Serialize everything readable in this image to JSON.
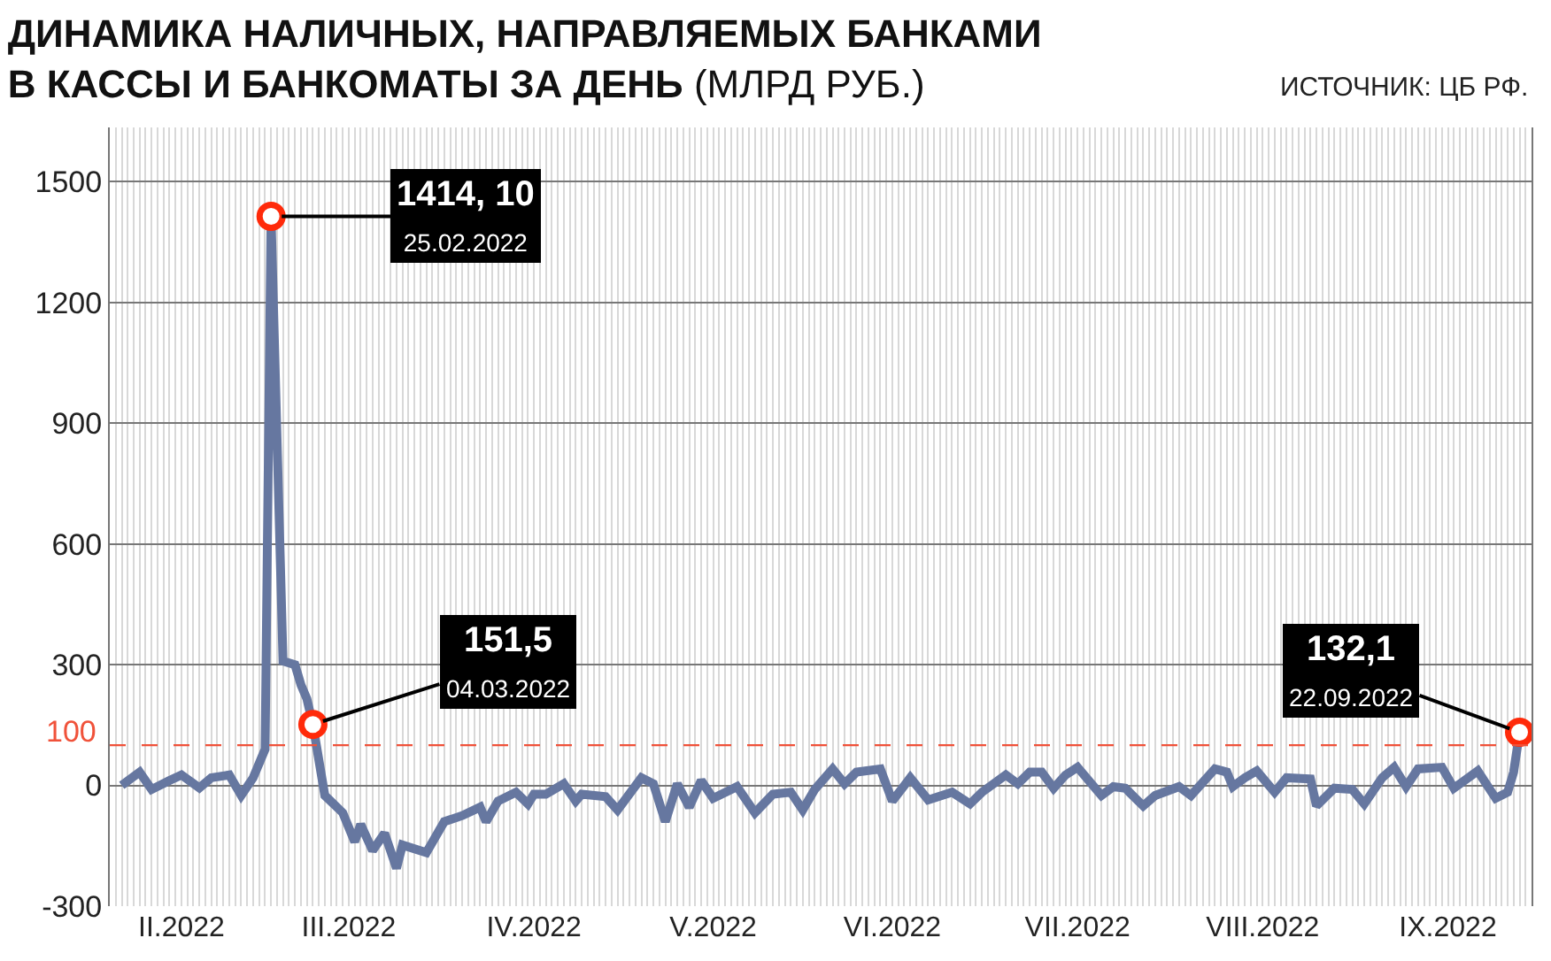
{
  "chart_data": {
    "type": "line",
    "title": "ДИНАМИКА НАЛИЧНЫХ, НАПРАВЛЯЕМЫХ БАНКАМИ\nВ КАССЫ И БАНКОМАТЫ ЗА ДЕНЬ",
    "subtitle": "(МЛРД РУБ.)",
    "x": [
      "2022-01-31",
      "2022-02-03",
      "2022-02-05",
      "2022-02-08",
      "2022-02-10",
      "2022-02-13",
      "2022-02-15",
      "2022-02-18",
      "2022-02-20",
      "2022-02-22",
      "2022-02-24",
      "2022-02-25",
      "2022-02-27",
      "2022-03-01",
      "2022-03-02",
      "2022-03-03",
      "2022-03-04",
      "2022-03-06",
      "2022-03-09",
      "2022-03-11",
      "2022-03-12",
      "2022-03-14",
      "2022-03-16",
      "2022-03-18",
      "2022-03-19",
      "2022-03-23",
      "2022-03-26",
      "2022-03-29",
      "2022-04-01",
      "2022-04-02",
      "2022-04-04",
      "2022-04-07",
      "2022-04-09",
      "2022-04-10",
      "2022-04-12",
      "2022-04-15",
      "2022-04-17",
      "2022-04-18",
      "2022-04-22",
      "2022-04-24",
      "2022-04-28",
      "2022-04-30",
      "2022-05-02",
      "2022-05-04",
      "2022-05-06",
      "2022-05-08",
      "2022-05-10",
      "2022-05-14",
      "2022-05-17",
      "2022-05-20",
      "2022-05-23",
      "2022-05-25",
      "2022-05-27",
      "2022-05-30",
      "2022-06-01",
      "2022-06-03",
      "2022-06-07",
      "2022-06-09",
      "2022-06-12",
      "2022-06-15",
      "2022-06-19",
      "2022-06-22",
      "2022-06-24",
      "2022-06-28",
      "2022-06-30",
      "2022-07-02",
      "2022-07-04",
      "2022-07-06",
      "2022-07-08",
      "2022-07-10",
      "2022-07-14",
      "2022-07-16",
      "2022-07-18",
      "2022-07-21",
      "2022-07-23",
      "2022-07-27",
      "2022-07-29",
      "2022-08-02",
      "2022-08-04",
      "2022-08-05",
      "2022-08-07",
      "2022-08-09",
      "2022-08-12",
      "2022-08-14",
      "2022-08-18",
      "2022-08-19",
      "2022-08-22",
      "2022-08-25",
      "2022-08-27",
      "2022-08-30",
      "2022-09-01",
      "2022-09-03",
      "2022-09-05",
      "2022-09-09",
      "2022-09-11",
      "2022-09-15",
      "2022-09-18",
      "2022-09-20",
      "2022-09-21",
      "2022-09-22"
    ],
    "series": [
      {
        "color": "#6677a0",
        "values": [
          0,
          33,
          -10,
          12,
          26,
          -6,
          19,
          26,
          -25,
          19,
          90,
          1414.1,
          309,
          300,
          250,
          215,
          151.5,
          -25,
          -68,
          -140,
          -97,
          -162,
          -119,
          -206,
          -148,
          -167,
          -90,
          -75,
          -54,
          -90,
          -39,
          -17,
          -46,
          -22,
          -22,
          4,
          -39,
          -22,
          -28,
          -61,
          19,
          4,
          -90,
          4,
          -54,
          12,
          -32,
          -3,
          -68,
          -22,
          -17,
          -61,
          -10,
          41,
          4,
          33,
          41,
          -39,
          19,
          -36,
          -17,
          -46,
          -17,
          26,
          4,
          33,
          33,
          -7,
          26,
          45,
          -25,
          -3,
          -7,
          -51,
          -25,
          -3,
          -25,
          41,
          33,
          -3,
          19,
          36,
          -17,
          19,
          16,
          -51,
          -7,
          -10,
          -46,
          19,
          45,
          -3,
          41,
          45,
          -7,
          36,
          -32,
          -17,
          33,
          132.1
        ]
      }
    ],
    "xlim": [
      "2022-01-29",
      "2022-09-24"
    ],
    "xticks": [
      {
        "value": "2022-02-10",
        "label": "II.2022"
      },
      {
        "value": "2022-03-10",
        "label": "III.2022"
      },
      {
        "value": "2022-04-10",
        "label": "IV.2022"
      },
      {
        "value": "2022-05-10",
        "label": "V.2022"
      },
      {
        "value": "2022-06-09",
        "label": "VI.2022"
      },
      {
        "value": "2022-07-10",
        "label": "VII.2022"
      },
      {
        "value": "2022-08-10",
        "label": "VIII.2022"
      },
      {
        "value": "2022-09-10",
        "label": "IX.2022"
      }
    ],
    "ylim": [
      -300,
      1635
    ],
    "yticks": [
      -300,
      0,
      300,
      600,
      900,
      1200,
      1500
    ],
    "ref_lines": [
      {
        "axis": "y",
        "value": 100,
        "label": "100",
        "color": "#f0523a",
        "line_style": "dashed"
      }
    ],
    "annotations": [
      {
        "text": "1414, 10\n25.02.2022",
        "x": "2022-02-25",
        "y": 1414.1
      },
      {
        "text": "151,5\n04.03.2022",
        "x": "2022-03-04",
        "y": 151.5
      },
      {
        "text": "132,1\n22.09.2022",
        "x": "2022-09-22",
        "y": 132.1
      },
      "ИСТОЧНИК: ЦБ РФ."
    ],
    "grid": true,
    "marker": "none",
    "line_style": "solid"
  }
}
